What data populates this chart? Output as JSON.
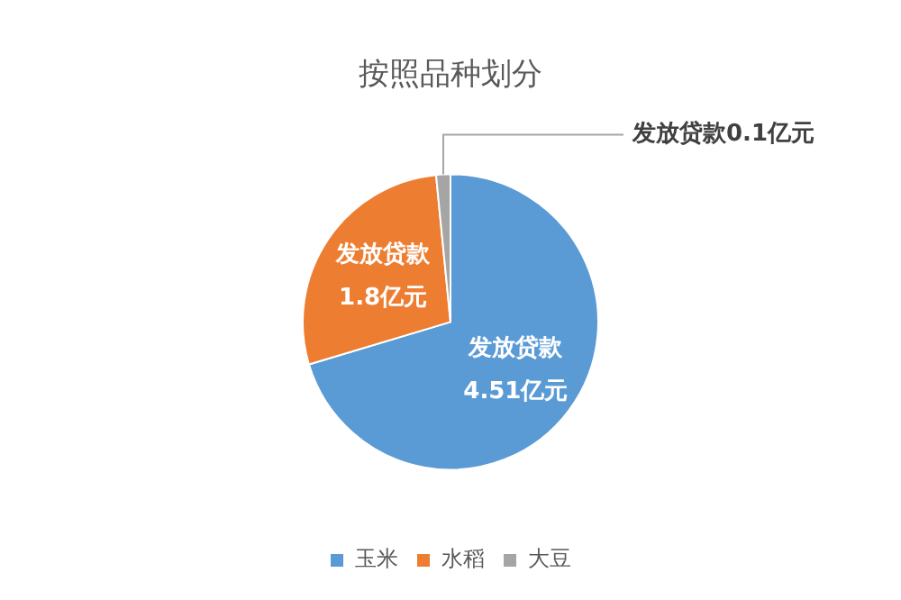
{
  "chart_data": {
    "type": "pie",
    "title": "按照品种划分",
    "categories": [
      "玉米",
      "水稻",
      "大豆"
    ],
    "values": [
      4.51,
      1.8,
      0.1
    ],
    "colors": [
      "#5b9bd5",
      "#ed7d31",
      "#a5a5a5"
    ],
    "value_labels": [
      "发放贷款\n4.51亿元",
      "发放贷款\n1.8亿元",
      "发放贷款0.1亿元"
    ],
    "legend": "bottom"
  }
}
